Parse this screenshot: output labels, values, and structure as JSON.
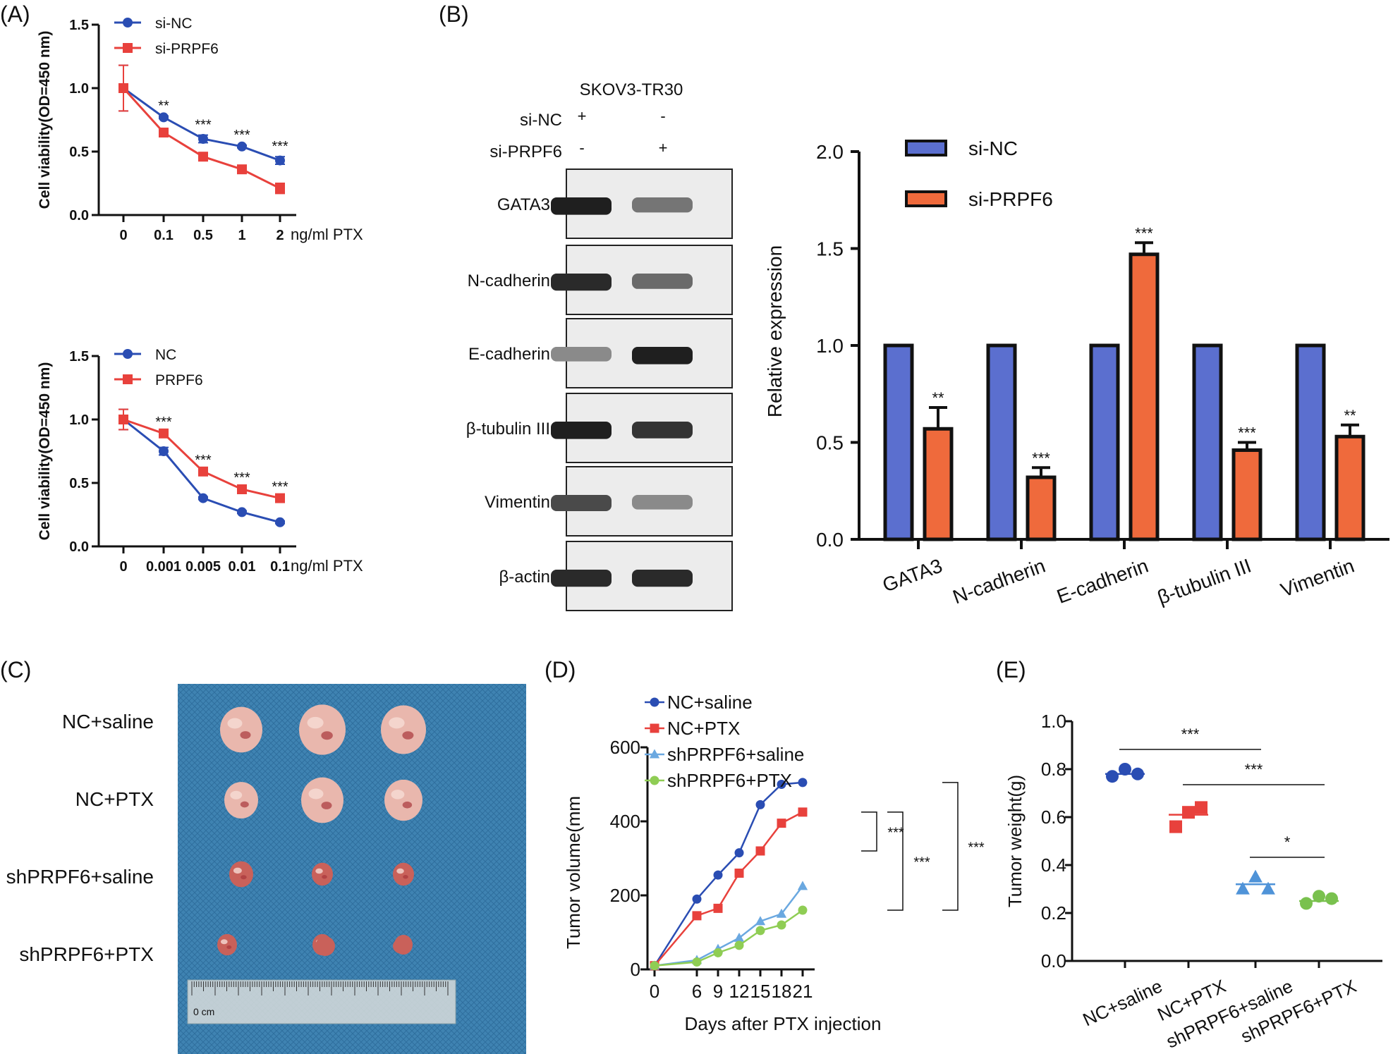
{
  "panels": {
    "A": {
      "label": "(A)",
      "charts": [
        {
          "type": "line",
          "ylabel": "Cell viability(OD=450 nm)",
          "xunit": "ng/ml PTX",
          "categories": [
            "0",
            "0.1",
            "0.5",
            "1",
            "2"
          ],
          "ylim": [
            0,
            1.5
          ],
          "yticks": [
            "0.0",
            "0.5",
            "1.0",
            "1.5"
          ],
          "legend_position": "top-left",
          "series": [
            {
              "name": "si-NC",
              "color": "#2a4db3",
              "marker": "circle",
              "values": [
                1.0,
                0.77,
                0.6,
                0.54,
                0.43
              ],
              "errors": [
                0.18,
                0.01,
                0.03,
                0.01,
                0.03
              ]
            },
            {
              "name": "si-PRPF6",
              "color": "#e8413c",
              "marker": "square",
              "values": [
                1.0,
                0.65,
                0.46,
                0.36,
                0.21
              ],
              "errors": [
                0.18,
                0.03,
                0.01,
                0.03,
                0.04
              ]
            }
          ],
          "significance": [
            "",
            "**",
            "***",
            "***",
            "***"
          ]
        },
        {
          "type": "line",
          "ylabel": "Cell viability(OD=450 nm)",
          "xunit": "ng/ml PTX",
          "categories": [
            "0",
            "0.001",
            "0.005",
            "0.01",
            "0.1"
          ],
          "ylim": [
            0,
            1.5
          ],
          "yticks": [
            "0.0",
            "0.5",
            "1.0",
            "1.5"
          ],
          "legend_position": "top-left",
          "series": [
            {
              "name": "NC",
              "color": "#2a4db3",
              "marker": "circle",
              "values": [
                1.0,
                0.75,
                0.38,
                0.27,
                0.19
              ],
              "errors": [
                0.08,
                0.03,
                0.01,
                0.01,
                0.01
              ]
            },
            {
              "name": "PRPF6",
              "color": "#e8413c",
              "marker": "square",
              "values": [
                1.0,
                0.89,
                0.59,
                0.45,
                0.38
              ],
              "errors": [
                0.08,
                0.01,
                0.01,
                0.01,
                0.01
              ]
            }
          ],
          "significance": [
            "",
            "***",
            "***",
            "***",
            "***"
          ]
        }
      ]
    },
    "B": {
      "label": "(B)",
      "blot": {
        "cell_line": "SKOV3-TR30",
        "conditions": [
          {
            "name": "si-NC",
            "lanes": [
              "+",
              "-"
            ]
          },
          {
            "name": "si-PRPF6",
            "lanes": [
              "-",
              "+"
            ]
          }
        ],
        "bands": [
          {
            "name": "GATA3",
            "intensity": [
              0.95,
              0.55
            ]
          },
          {
            "name": "N-cadherin",
            "intensity": [
              0.9,
              0.6
            ]
          },
          {
            "name": "E-cadherin",
            "intensity": [
              0.45,
              0.95
            ]
          },
          {
            "name": "β-tubulin III",
            "intensity": [
              0.95,
              0.85
            ]
          },
          {
            "name": "Vimentin",
            "intensity": [
              0.75,
              0.45
            ]
          },
          {
            "name": "β-actin",
            "intensity": [
              0.9,
              0.9
            ]
          }
        ]
      },
      "chart_data": {
        "type": "bar",
        "ylabel": "Relative expression",
        "categories": [
          "GATA3",
          "N-cadherin",
          "E-cadherin",
          "β-tubulin III",
          "Vimentin"
        ],
        "ylim": [
          0,
          2.0
        ],
        "yticks": [
          "0.0",
          "0.5",
          "1.0",
          "1.5",
          "2.0"
        ],
        "legend_position": "top-left",
        "series": [
          {
            "name": "si-NC",
            "color": "#5b6fcf",
            "values": [
              1.0,
              1.0,
              1.0,
              1.0,
              1.0
            ],
            "errors": [
              0,
              0,
              0,
              0,
              0
            ]
          },
          {
            "name": "si-PRPF6",
            "color": "#ef6a3c",
            "values": [
              0.57,
              0.32,
              1.47,
              0.46,
              0.53
            ],
            "errors": [
              0.11,
              0.05,
              0.06,
              0.04,
              0.06
            ]
          }
        ],
        "significance": [
          "**",
          "***",
          "***",
          "***",
          "**"
        ]
      }
    },
    "C": {
      "label": "(C)",
      "rows": [
        "NC+saline",
        "NC+PTX",
        "shPRPF6+saline",
        "shPRPF6+PTX"
      ],
      "photo_background": "#3f83b2",
      "ruler_text": "0 cm"
    },
    "D": {
      "label": "(D)",
      "chart_data": {
        "type": "line",
        "ylabel": "Tumor volume(mm",
        "xlabel": "Days after PTX injection",
        "x": [
          0,
          6,
          9,
          12,
          15,
          18,
          21
        ],
        "ylim": [
          0,
          600
        ],
        "yticks": [
          "0",
          "200",
          "400",
          "600"
        ],
        "legend_position": "top-left",
        "series": [
          {
            "name": "NC+saline",
            "color": "#2a4db3",
            "marker": "circle",
            "values": [
              10,
              190,
              255,
              315,
              445,
              500,
              505
            ]
          },
          {
            "name": "NC+PTX",
            "color": "#e8413c",
            "marker": "square",
            "values": [
              10,
              145,
              165,
              260,
              320,
              395,
              425
            ]
          },
          {
            "name": "shPRPF6+saline",
            "color": "#6aa8e0",
            "marker": "triangle",
            "values": [
              10,
              25,
              55,
              85,
              130,
              150,
              225
            ]
          },
          {
            "name": "shPRPF6+PTX",
            "color": "#8fcd54",
            "marker": "circle",
            "values": [
              10,
              20,
              45,
              65,
              105,
              120,
              160
            ]
          }
        ],
        "significance": [
          "***",
          "***",
          "***"
        ]
      }
    },
    "E": {
      "label": "(E)",
      "chart_data": {
        "type": "scatter",
        "ylabel": "Tumor weight(g)",
        "categories": [
          "NC+saline",
          "NC+PTX",
          "shPRPF6+saline",
          "shPRPF6+PTX"
        ],
        "ylim": [
          0,
          1.0
        ],
        "yticks": [
          "0.0",
          "0.2",
          "0.4",
          "0.6",
          "0.8",
          "1.0"
        ],
        "groups": [
          {
            "name": "NC+saline",
            "color": "#2a4db3",
            "marker": "circle",
            "values": [
              0.77,
              0.8,
              0.78
            ],
            "mean": 0.78
          },
          {
            "name": "NC+PTX",
            "color": "#e8413c",
            "marker": "square",
            "values": [
              0.56,
              0.62,
              0.64
            ],
            "mean": 0.61
          },
          {
            "name": "shPRPF6+saline",
            "color": "#4f93d8",
            "marker": "triangle",
            "values": [
              0.3,
              0.35,
              0.3
            ],
            "mean": 0.32
          },
          {
            "name": "shPRPF6+PTX",
            "color": "#79c14e",
            "marker": "circle",
            "values": [
              0.24,
              0.27,
              0.26
            ],
            "mean": 0.25
          }
        ],
        "comparisons": [
          {
            "from": 0,
            "to": 2,
            "label": "***"
          },
          {
            "from": 1,
            "to": 3,
            "label": "***"
          },
          {
            "from": 2,
            "to": 3,
            "label": "*"
          }
        ]
      }
    }
  }
}
